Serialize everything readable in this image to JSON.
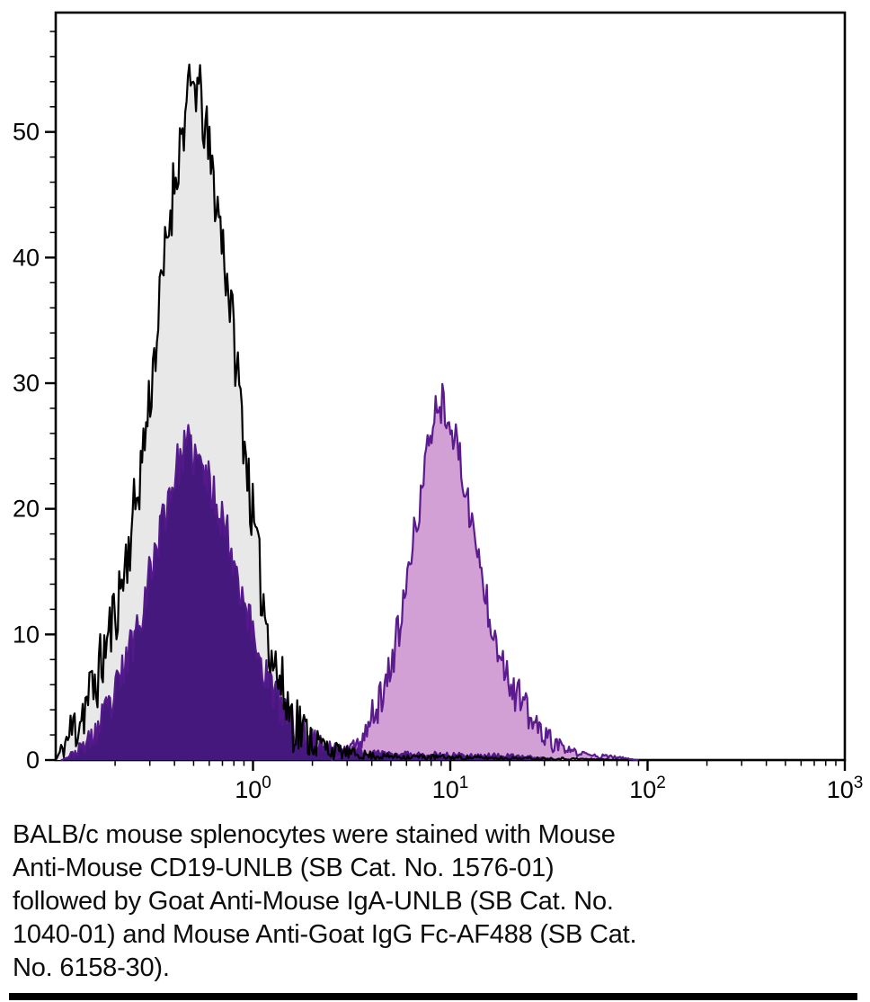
{
  "chart_data": {
    "type": "area",
    "subtype": "flow-cytometry-overlay-histogram",
    "title": "",
    "xlabel": "",
    "ylabel": "",
    "x_scale": "log10",
    "x_range_log10": [
      -1,
      3
    ],
    "y_range": [
      0,
      59.5
    ],
    "grid": false,
    "legend": "none",
    "axis_color": "#000000",
    "x_major_ticks": [
      {
        "log10": 0,
        "mantissa": "10",
        "exp": "0"
      },
      {
        "log10": 1,
        "mantissa": "10",
        "exp": "1"
      },
      {
        "log10": 2,
        "mantissa": "10",
        "exp": "2"
      },
      {
        "log10": 3,
        "mantissa": "10",
        "exp": "3"
      }
    ],
    "x_minor_decades": [
      -1,
      0,
      1,
      2
    ],
    "y_major_ticks": [
      0,
      10,
      20,
      30,
      40,
      50
    ],
    "y_minor_step": 2,
    "series": [
      {
        "name": "control-black-outline-gray-fill",
        "peak_x_log10": -0.29,
        "peak_height": 57,
        "stroke": "#000000",
        "fill": "#e8e8e8",
        "fill_opacity": 1,
        "render_hints": {
          "seed": 11,
          "amp": 2.8
        },
        "points": [
          [
            -1,
            0
          ],
          [
            -0.97,
            0.8
          ],
          [
            -0.93,
            2
          ],
          [
            -0.88,
            3.5
          ],
          [
            -0.83,
            5
          ],
          [
            -0.78,
            7
          ],
          [
            -0.73,
            10
          ],
          [
            -0.68,
            13
          ],
          [
            -0.63,
            17
          ],
          [
            -0.58,
            22
          ],
          [
            -0.53,
            28
          ],
          [
            -0.48,
            35
          ],
          [
            -0.44,
            41
          ],
          [
            -0.4,
            46
          ],
          [
            -0.36,
            50
          ],
          [
            -0.32,
            53
          ],
          [
            -0.29,
            54
          ],
          [
            -0.26,
            52
          ],
          [
            -0.23,
            49
          ],
          [
            -0.2,
            46
          ],
          [
            -0.16,
            42
          ],
          [
            -0.12,
            37
          ],
          [
            -0.08,
            31
          ],
          [
            -0.04,
            25
          ],
          [
            0,
            19
          ],
          [
            0.04,
            14
          ],
          [
            0.08,
            10
          ],
          [
            0.12,
            7
          ],
          [
            0.16,
            5
          ],
          [
            0.2,
            3.5
          ],
          [
            0.26,
            2.2
          ],
          [
            0.32,
            1.4
          ],
          [
            0.4,
            0.8
          ],
          [
            0.5,
            0.5
          ],
          [
            0.65,
            0.3
          ],
          [
            0.85,
            0.25
          ],
          [
            1.05,
            0.2
          ],
          [
            1.3,
            0.15
          ],
          [
            1.6,
            0.1
          ],
          [
            1.9,
            0
          ]
        ]
      },
      {
        "name": "stained-positive-purple-outline-light-fill",
        "peak_x_log10": 0.95,
        "peak_height": 30.5,
        "stroke": "#5b1b8e",
        "fill": "#d2a0d4",
        "fill_opacity": 1,
        "render_hints": {
          "seed": 37,
          "amp": 1.7
        },
        "points": [
          [
            0.4,
            0
          ],
          [
            0.45,
            0.4
          ],
          [
            0.5,
            0.9
          ],
          [
            0.55,
            1.6
          ],
          [
            0.6,
            3
          ],
          [
            0.64,
            4.5
          ],
          [
            0.68,
            6.5
          ],
          [
            0.72,
            9
          ],
          [
            0.76,
            12
          ],
          [
            0.8,
            16
          ],
          [
            0.84,
            20
          ],
          [
            0.88,
            24
          ],
          [
            0.91,
            27
          ],
          [
            0.94,
            28.5
          ],
          [
            0.97,
            28.5
          ],
          [
            1,
            27
          ],
          [
            1.03,
            25
          ],
          [
            1.06,
            23
          ],
          [
            1.09,
            20.5
          ],
          [
            1.12,
            18
          ],
          [
            1.15,
            15.5
          ],
          [
            1.18,
            13
          ],
          [
            1.22,
            10.5
          ],
          [
            1.26,
            8.5
          ],
          [
            1.3,
            6.5
          ],
          [
            1.35,
            4.8
          ],
          [
            1.4,
            3.4
          ],
          [
            1.45,
            2.4
          ],
          [
            1.5,
            1.6
          ],
          [
            1.56,
            1
          ],
          [
            1.63,
            0.6
          ],
          [
            1.72,
            0.35
          ],
          [
            1.85,
            0.2
          ],
          [
            1.95,
            0
          ]
        ]
      },
      {
        "name": "negative-population-purple-outline-dark-fill",
        "peak_x_log10": -0.33,
        "peak_height": 27.5,
        "stroke": "#53198a",
        "fill": "#45187e",
        "fill_opacity": 1,
        "render_hints": {
          "seed": 23,
          "amp": 1.8
        },
        "points": [
          [
            -0.97,
            0
          ],
          [
            -0.9,
            0.6
          ],
          [
            -0.83,
            1.5
          ],
          [
            -0.76,
            3
          ],
          [
            -0.7,
            5
          ],
          [
            -0.64,
            8
          ],
          [
            -0.58,
            11
          ],
          [
            -0.52,
            15
          ],
          [
            -0.46,
            19
          ],
          [
            -0.41,
            22
          ],
          [
            -0.37,
            24
          ],
          [
            -0.33,
            25
          ],
          [
            -0.29,
            24
          ],
          [
            -0.25,
            23
          ],
          [
            -0.21,
            21.5
          ],
          [
            -0.17,
            20
          ],
          [
            -0.13,
            18
          ],
          [
            -0.09,
            15.5
          ],
          [
            -0.05,
            13
          ],
          [
            0,
            10
          ],
          [
            0.05,
            7.5
          ],
          [
            0.1,
            5.5
          ],
          [
            0.15,
            4
          ],
          [
            0.21,
            2.8
          ],
          [
            0.28,
            1.8
          ],
          [
            0.36,
            1.2
          ],
          [
            0.45,
            0.8
          ],
          [
            0.6,
            0.5
          ],
          [
            0.8,
            0.45
          ],
          [
            1,
            0.4
          ],
          [
            1.2,
            0.35
          ],
          [
            1.4,
            0.25
          ],
          [
            1.55,
            0
          ]
        ]
      }
    ]
  },
  "caption": {
    "lines": [
      "BALB/c mouse splenocytes were stained with Mouse",
      "Anti-Mouse CD19-UNLB (SB Cat. No. 1576-01)",
      "followed by Goat Anti-Mouse IgA-UNLB (SB Cat. No.",
      "1040-01) and Mouse Anti-Goat IgG Fc-AF488 (SB Cat.",
      "No. 6158-30)."
    ]
  }
}
